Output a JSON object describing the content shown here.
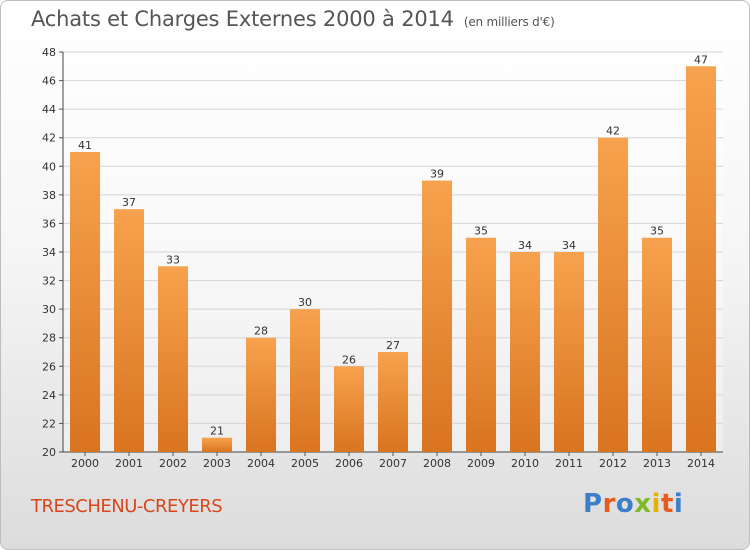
{
  "header": {
    "title": "Achats et Charges Externes 2000 à 2014",
    "subtitle": "(en milliers d'€)"
  },
  "footer": {
    "place": "TRESCHENU-CREYERS",
    "logo": "Proxiti"
  },
  "colors": {
    "bar_light": "#f7a24e",
    "bar_dark": "#d9741f",
    "grid": "#d5d5d5",
    "logo": [
      "#3a7fc8",
      "#e85a1b",
      "#3a7fc8",
      "#7fba25",
      "#e8b100",
      "#e85a1b",
      "#3a7fc8"
    ]
  },
  "chart_data": {
    "type": "bar",
    "title": "Achats et Charges Externes 2000 à 2014",
    "subtitle": "(en milliers d'€)",
    "categories": [
      "2000",
      "2001",
      "2002",
      "2003",
      "2004",
      "2005",
      "2006",
      "2007",
      "2008",
      "2009",
      "2010",
      "2011",
      "2012",
      "2013",
      "2014"
    ],
    "values": [
      41,
      37,
      33,
      21,
      28,
      30,
      26,
      27,
      39,
      35,
      34,
      34,
      42,
      35,
      47
    ],
    "ylim": [
      20,
      48
    ],
    "yticks": [
      20,
      22,
      24,
      26,
      28,
      30,
      32,
      34,
      36,
      38,
      40,
      42,
      44,
      46,
      48
    ],
    "grid": true,
    "data_labels": true
  }
}
